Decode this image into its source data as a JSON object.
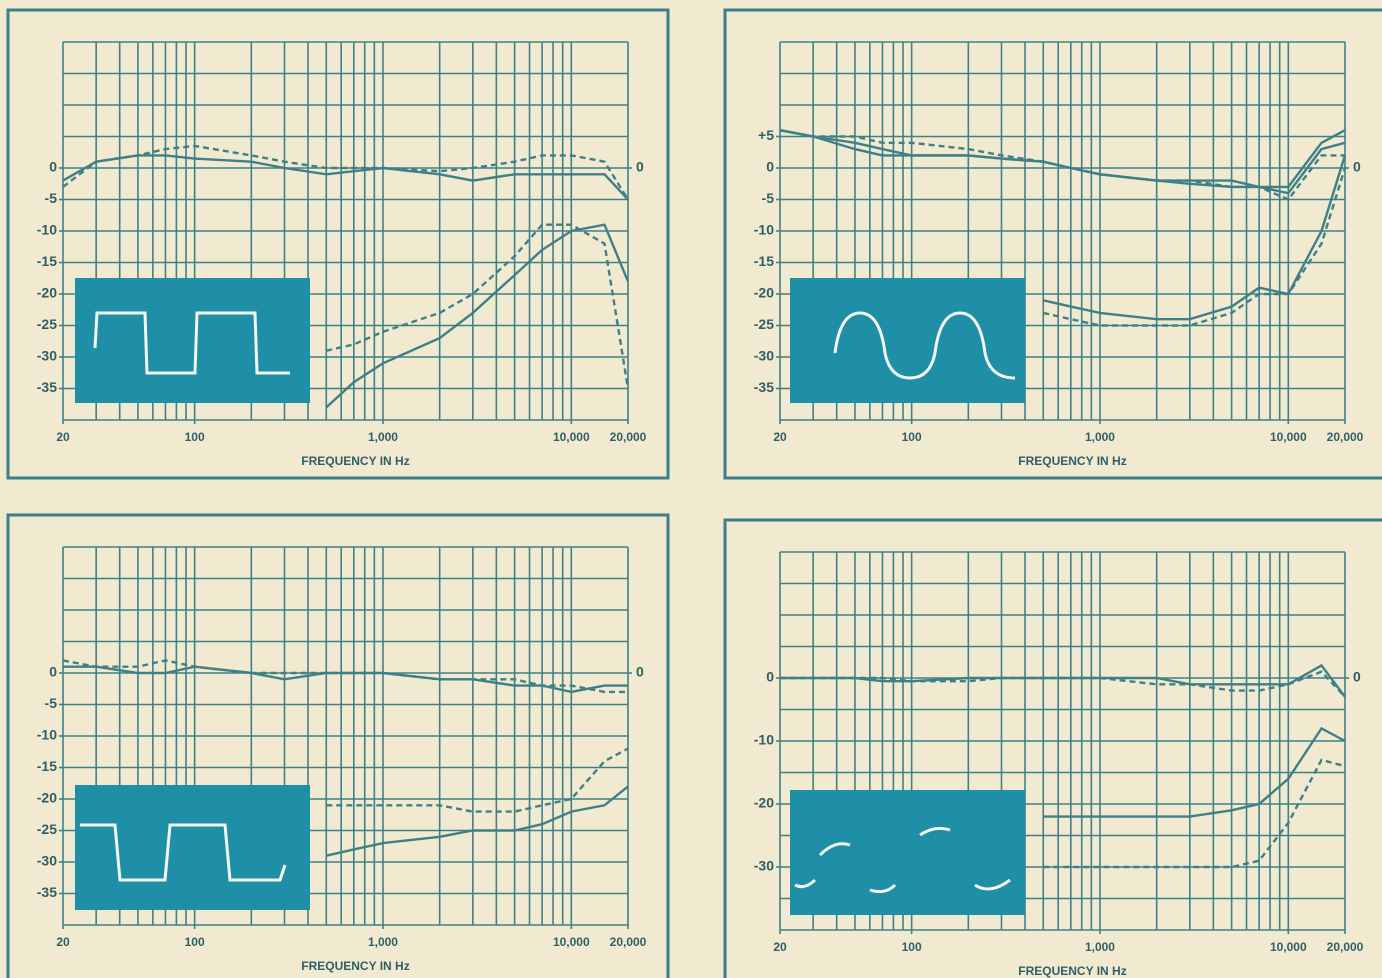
{
  "chart_data": [
    {
      "type": "line",
      "xlabel": "FREQUENCY IN Hz",
      "log_x": true,
      "grid": true,
      "color": "#3f8088",
      "xlim": [
        20,
        20000
      ],
      "ylim": [
        -40,
        20
      ],
      "y2lim": [
        -40,
        20
      ],
      "xticks": [
        20,
        100,
        {
          "value": 1000,
          "label": "1,000"
        },
        {
          "value": 10000,
          "label": "10,000"
        },
        {
          "value": 20000,
          "label": "20,000"
        }
      ],
      "yticks": [
        0,
        -5,
        -10,
        -15,
        -20,
        -25,
        -30,
        -35
      ],
      "y2ticks": [
        0
      ],
      "xgrid": [
        20,
        30,
        40,
        50,
        60,
        70,
        80,
        90,
        100,
        200,
        300,
        400,
        500,
        600,
        700,
        800,
        900,
        1000,
        2000,
        3000,
        4000,
        5000,
        6000,
        7000,
        8000,
        9000,
        10000,
        20000
      ],
      "ygrid": [
        20,
        15,
        10,
        5,
        0,
        -5,
        -10,
        -15,
        -20,
        -25,
        -30,
        -35,
        -40
      ],
      "x": [
        20,
        30,
        50,
        70,
        100,
        200,
        300,
        500,
        700,
        1000,
        2000,
        3000,
        5000,
        7000,
        10000,
        15000,
        20000
      ],
      "series": [
        {
          "dashed": false,
          "values": [
            -2,
            1,
            2,
            2,
            1.5,
            1,
            0,
            -1,
            -0.5,
            0,
            -1,
            -2,
            -1,
            -1,
            -1,
            -1,
            -5
          ]
        },
        {
          "dashed": true,
          "values": [
            -3,
            1,
            2,
            3,
            3.5,
            2,
            1,
            0,
            0,
            0,
            -0.5,
            0,
            1,
            2,
            2,
            1,
            -5
          ]
        },
        {
          "dashed": false,
          "values": [
            null,
            null,
            null,
            null,
            null,
            null,
            null,
            -38,
            -34,
            -31,
            -27,
            -23,
            -17,
            -13,
            -10,
            -9,
            -18
          ]
        },
        {
          "dashed": true,
          "values": [
            null,
            null,
            null,
            null,
            null,
            null,
            null,
            -29,
            -28,
            -26,
            -23,
            -20,
            -14,
            -9,
            -9,
            -12,
            -35
          ]
        }
      ]
    },
    {
      "type": "line",
      "xlabel": "FREQUENCY IN Hz",
      "log_x": true,
      "grid": true,
      "color": "#3f8088",
      "xlim": [
        20,
        20000
      ],
      "ylim": [
        -40,
        20
      ],
      "y2lim": [
        -40,
        20
      ],
      "xticks": [
        20,
        100,
        {
          "value": 1000,
          "label": "1,000"
        },
        {
          "value": 10000,
          "label": "10,000"
        },
        {
          "value": 20000,
          "label": "20,000"
        }
      ],
      "yticks": [
        {
          "value": 5,
          "label": "+5"
        },
        0,
        -5,
        -10,
        -15,
        -20,
        -25,
        -30,
        -35
      ],
      "y2ticks": [
        0
      ],
      "xgrid": [
        20,
        30,
        40,
        50,
        60,
        70,
        80,
        90,
        100,
        200,
        300,
        400,
        500,
        600,
        700,
        800,
        900,
        1000,
        2000,
        3000,
        4000,
        5000,
        6000,
        7000,
        8000,
        9000,
        10000,
        20000
      ],
      "ygrid": [
        20,
        15,
        10,
        5,
        0,
        -5,
        -10,
        -15,
        -20,
        -25,
        -30,
        -35,
        -40
      ],
      "x": [
        20,
        30,
        50,
        70,
        100,
        200,
        300,
        500,
        700,
        1000,
        2000,
        3000,
        5000,
        7000,
        10000,
        15000,
        20000
      ],
      "series": [
        {
          "dashed": false,
          "values": [
            6,
            5,
            3,
            2,
            2,
            2,
            1.5,
            1,
            0,
            -1,
            -2,
            -2.5,
            -3,
            -3,
            -4,
            3,
            4
          ]
        },
        {
          "dashed": false,
          "values": [
            6,
            5,
            4,
            3,
            2,
            2,
            1.5,
            1,
            0,
            -1,
            -2,
            -2,
            -2,
            -3,
            -3,
            4,
            6
          ]
        },
        {
          "dashed": true,
          "values": [
            6,
            5,
            5,
            4,
            4,
            3,
            2,
            1,
            0,
            -1,
            -2,
            -2,
            -3,
            -3,
            -5,
            2,
            2
          ]
        },
        {
          "dashed": false,
          "values": [
            null,
            null,
            null,
            null,
            null,
            null,
            null,
            -21,
            -22,
            -23,
            -24,
            -24,
            -22,
            -19,
            -20,
            -10,
            2
          ]
        },
        {
          "dashed": true,
          "values": [
            null,
            null,
            null,
            null,
            null,
            null,
            null,
            -23,
            -24,
            -25,
            -25,
            -25,
            -23,
            -20,
            -20,
            -12,
            0
          ]
        }
      ]
    },
    {
      "type": "line",
      "xlabel": "FREQUENCY IN Hz",
      "log_x": true,
      "grid": true,
      "color": "#3f8088",
      "xlim": [
        20,
        20000
      ],
      "ylim": [
        -40,
        20
      ],
      "y2lim": [
        -40,
        20
      ],
      "xticks": [
        20,
        100,
        {
          "value": 1000,
          "label": "1,000"
        },
        {
          "value": 10000,
          "label": "10,000"
        },
        {
          "value": 20000,
          "label": "20,000"
        }
      ],
      "yticks": [
        0,
        -5,
        -10,
        -15,
        -20,
        -25,
        -30,
        -35
      ],
      "y2ticks": [
        0
      ],
      "xgrid": [
        20,
        30,
        40,
        50,
        60,
        70,
        80,
        90,
        100,
        200,
        300,
        400,
        500,
        600,
        700,
        800,
        900,
        1000,
        2000,
        3000,
        4000,
        5000,
        6000,
        7000,
        8000,
        9000,
        10000,
        20000
      ],
      "ygrid": [
        20,
        15,
        10,
        5,
        0,
        -5,
        -10,
        -15,
        -20,
        -25,
        -30,
        -35,
        -40
      ],
      "x": [
        20,
        30,
        50,
        70,
        100,
        200,
        300,
        500,
        700,
        1000,
        2000,
        3000,
        5000,
        7000,
        10000,
        15000,
        20000
      ],
      "series": [
        {
          "dashed": false,
          "values": [
            1,
            1,
            0,
            0,
            1,
            0,
            -1,
            0,
            0,
            0,
            -1,
            -1,
            -2,
            -2,
            -3,
            -2,
            -2
          ]
        },
        {
          "dashed": true,
          "values": [
            2,
            1,
            1,
            2,
            1,
            0,
            0,
            0,
            0,
            0,
            -1,
            -1,
            -1,
            -2,
            -2,
            -3,
            -3
          ]
        },
        {
          "dashed": false,
          "values": [
            null,
            null,
            null,
            null,
            null,
            null,
            null,
            -29,
            -28,
            -27,
            -26,
            -25,
            -25,
            -24,
            -22,
            -21,
            -18
          ]
        },
        {
          "dashed": true,
          "values": [
            null,
            null,
            null,
            null,
            null,
            null,
            null,
            -21,
            -21,
            -21,
            -21,
            -22,
            -22,
            -21,
            -20,
            -14,
            -12
          ]
        }
      ]
    },
    {
      "type": "line",
      "xlabel": "FREQUENCY IN Hz",
      "log_x": true,
      "grid": true,
      "color": "#3f8088",
      "xlim": [
        20,
        20000
      ],
      "ylim": [
        -40,
        20
      ],
      "y2lim": [
        -40,
        20
      ],
      "xticks": [
        20,
        100,
        {
          "value": 1000,
          "label": "1,000"
        },
        {
          "value": 10000,
          "label": "10,000"
        },
        {
          "value": 20000,
          "label": "20,000"
        }
      ],
      "yticks": [
        0,
        -10,
        -20,
        -30
      ],
      "y2ticks": [
        0
      ],
      "xgrid": [
        20,
        30,
        40,
        50,
        60,
        70,
        80,
        90,
        100,
        200,
        300,
        400,
        500,
        600,
        700,
        800,
        900,
        1000,
        2000,
        3000,
        4000,
        5000,
        6000,
        7000,
        8000,
        9000,
        10000,
        20000
      ],
      "ygrid": [
        20,
        15,
        10,
        5,
        0,
        -5,
        -10,
        -15,
        -20,
        -25,
        -30,
        -35,
        -40
      ],
      "x": [
        20,
        30,
        50,
        70,
        100,
        200,
        300,
        500,
        700,
        1000,
        2000,
        3000,
        5000,
        7000,
        10000,
        15000,
        20000
      ],
      "series": [
        {
          "dashed": false,
          "values": [
            0,
            0,
            0,
            -0.5,
            -0.5,
            0,
            0,
            0,
            0,
            0,
            0,
            -1,
            -1,
            -1,
            -1,
            2,
            -3
          ]
        },
        {
          "dashed": true,
          "values": [
            0,
            0,
            0,
            0,
            -0.5,
            -0.5,
            0,
            0,
            0,
            0,
            -1,
            -1,
            -2,
            -2,
            -1,
            1,
            -3
          ]
        },
        {
          "dashed": false,
          "values": [
            null,
            null,
            null,
            null,
            null,
            null,
            null,
            -22,
            -22,
            -22,
            -22,
            -22,
            -21,
            -20,
            -16,
            -8,
            -10
          ]
        },
        {
          "dashed": true,
          "values": [
            null,
            null,
            null,
            null,
            null,
            null,
            null,
            -30,
            -30,
            -30,
            -30,
            -30,
            -30,
            -29,
            -23,
            -13,
            -14
          ]
        }
      ]
    }
  ]
}
